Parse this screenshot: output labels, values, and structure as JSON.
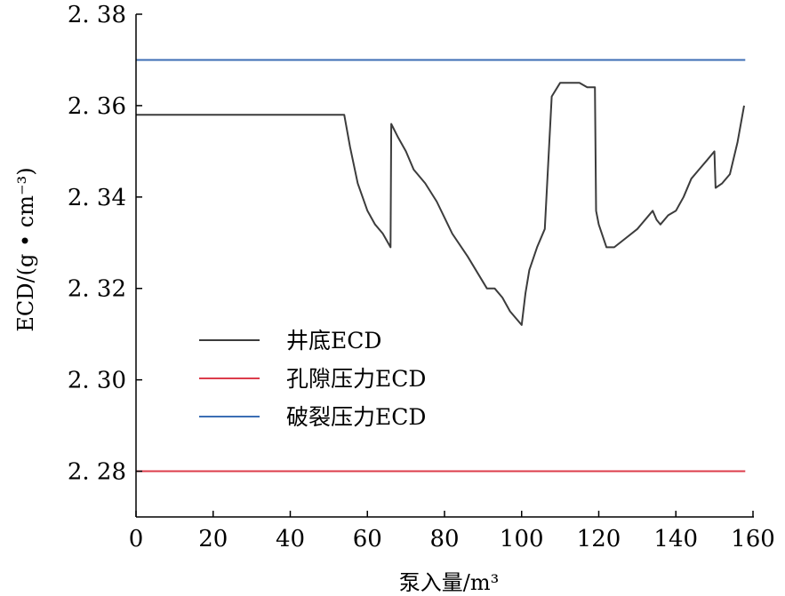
{
  "chart_data": {
    "type": "line",
    "xlabel": "泵入量/m³",
    "ylabel": "ECD/(g • cm⁻³)",
    "xlim": [
      0,
      160
    ],
    "ylim": [
      2.27,
      2.38
    ],
    "xticks": [
      0,
      20,
      40,
      60,
      80,
      100,
      120,
      140,
      160
    ],
    "xtick_labels": [
      "0",
      "20",
      "40",
      "60",
      "80",
      "100",
      "120",
      "140",
      "160"
    ],
    "yticks": [
      2.28,
      2.3,
      2.32,
      2.34,
      2.36,
      2.38
    ],
    "ytick_labels": [
      "2. 28",
      "2. 30",
      "2. 32",
      "2. 34",
      "2. 36",
      "2. 38"
    ],
    "grid": false,
    "legend_position": "left-center",
    "series": [
      {
        "name": "井底ECD",
        "color": "#3c3c3c",
        "x": [
          0,
          54,
          55.5,
          57.5,
          60,
          62,
          64,
          66,
          66.2,
          68,
          70,
          72,
          75,
          78,
          82,
          86,
          91,
          93,
          95,
          97,
          100,
          101,
          102,
          104,
          106,
          107.8,
          110,
          115,
          117,
          119,
          119.3,
          120,
          122,
          124,
          127,
          130,
          134,
          135,
          136,
          138,
          140,
          142,
          144,
          146,
          148,
          150,
          150.3,
          152,
          154,
          156,
          157.7
        ],
        "y": [
          2.358,
          2.358,
          2.351,
          2.343,
          2.337,
          2.334,
          2.332,
          2.329,
          2.356,
          2.353,
          2.35,
          2.346,
          2.343,
          2.339,
          2.332,
          2.327,
          2.32,
          2.32,
          2.318,
          2.315,
          2.312,
          2.319,
          2.324,
          2.329,
          2.333,
          2.362,
          2.365,
          2.365,
          2.364,
          2.364,
          2.337,
          2.334,
          2.329,
          2.329,
          2.331,
          2.333,
          2.337,
          2.335,
          2.334,
          2.336,
          2.337,
          2.34,
          2.344,
          2.346,
          2.348,
          2.35,
          2.342,
          2.343,
          2.345,
          2.352,
          2.36
        ]
      },
      {
        "name": "孔隙压力ECD",
        "color": "#dc3c4b",
        "x": [
          0,
          158
        ],
        "y": [
          2.28,
          2.28
        ]
      },
      {
        "name": "破裂压力ECD",
        "color": "#3c6eb4",
        "x": [
          0,
          158
        ],
        "y": [
          2.37,
          2.37
        ]
      }
    ]
  }
}
